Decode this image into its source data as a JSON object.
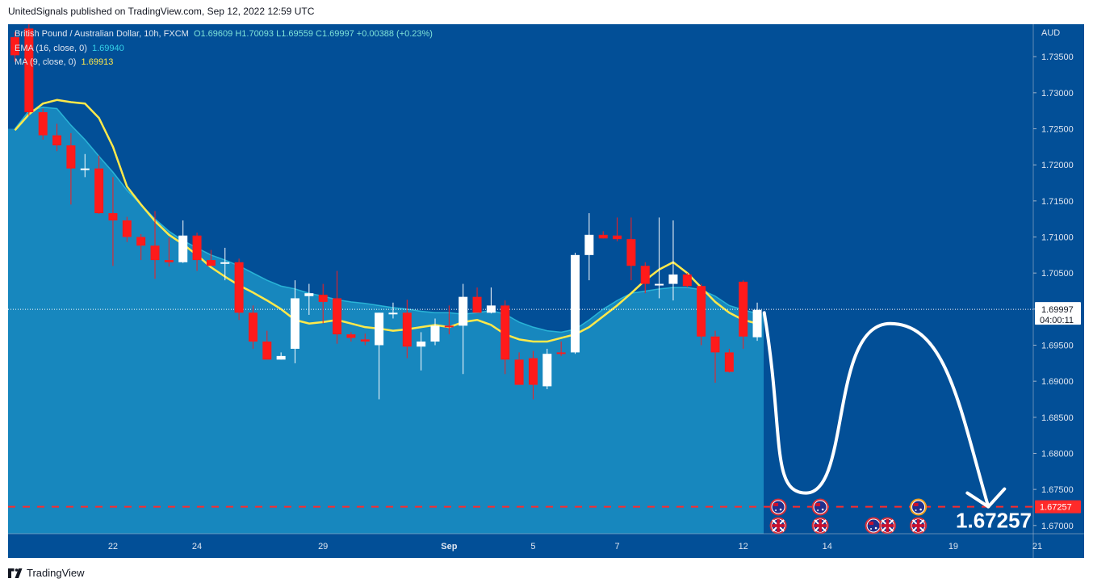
{
  "header": {
    "publisher_line": "UnitedSignals published on TradingView.com, Sep 12, 2022 12:59 UTC"
  },
  "legend": {
    "symbol": "British Pound / Australian Dollar, 10h, FXCM",
    "ohlc": "O1.69609  H1.70093  L1.69559  C1.69997  +0.00388 (+0.23%)",
    "ema_label": "EMA (16, close, 0)",
    "ema_value": "1.69940",
    "ma_label": "MA (9, close, 0)",
    "ma_value": "1.69913"
  },
  "price_scale": {
    "currency": "AUD",
    "last_price": "1.69997",
    "countdown": "04:00:11",
    "target_tag": "1.67257"
  },
  "target_annotation": "1.67257",
  "footer": {
    "brand": "TradingView"
  },
  "colors": {
    "background": "#024f97",
    "up_candle": "#ffffff",
    "down_candle": "#ff1a1a",
    "ema_fill": "#1a8fc4",
    "ma_line": "#ffe94a",
    "ema_line": "#35d2e8",
    "target_line": "#ff2a2a",
    "projection": "#ffffff"
  },
  "chart_data": {
    "type": "candlestick",
    "title": "British Pound / Australian Dollar, 10h, FXCM",
    "y_axis": {
      "ticks": [
        1.735,
        1.73,
        1.725,
        1.72,
        1.715,
        1.71,
        1.705,
        1.7,
        1.695,
        1.69,
        1.685,
        1.68,
        1.675,
        1.67
      ],
      "tick_labels": [
        "1.73500",
        "1.73000",
        "1.72500",
        "1.72000",
        "1.71500",
        "1.71000",
        "1.70500",
        "1.70000",
        "1.69500",
        "1.69000",
        "1.68500",
        "1.68000",
        "1.67500",
        "1.67000"
      ],
      "ylim": [
        1.6655,
        1.7395
      ]
    },
    "x_axis": {
      "tick_labels": [
        "22",
        "24",
        "29",
        "Sep",
        "5",
        "7",
        "12",
        "14",
        "19",
        "21"
      ],
      "tick_bar_index": [
        7,
        13,
        22,
        31,
        37,
        43,
        52,
        58,
        67,
        73
      ]
    },
    "candles": [
      {
        "o": 1.7377,
        "h": 1.7384,
        "l": 1.7343,
        "c": 1.7352
      },
      {
        "o": 1.7389,
        "h": 1.7395,
        "l": 1.7268,
        "c": 1.7273
      },
      {
        "o": 1.7273,
        "h": 1.7278,
        "l": 1.7235,
        "c": 1.7241
      },
      {
        "o": 1.7241,
        "h": 1.7257,
        "l": 1.7219,
        "c": 1.7227
      },
      {
        "o": 1.7227,
        "h": 1.7244,
        "l": 1.7145,
        "c": 1.7195
      },
      {
        "o": 1.7195,
        "h": 1.7215,
        "l": 1.7183,
        "c": 1.7195
      },
      {
        "o": 1.7195,
        "h": 1.7213,
        "l": 1.7132,
        "c": 1.7133
      },
      {
        "o": 1.7133,
        "h": 1.7183,
        "l": 1.706,
        "c": 1.7123
      },
      {
        "o": 1.7123,
        "h": 1.7128,
        "l": 1.7093,
        "c": 1.71
      },
      {
        "o": 1.71,
        "h": 1.7104,
        "l": 1.7068,
        "c": 1.7088
      },
      {
        "o": 1.7088,
        "h": 1.7136,
        "l": 1.7042,
        "c": 1.7068
      },
      {
        "o": 1.7068,
        "h": 1.7099,
        "l": 1.7059,
        "c": 1.7065
      },
      {
        "o": 1.7065,
        "h": 1.7123,
        "l": 1.7064,
        "c": 1.7102
      },
      {
        "o": 1.7102,
        "h": 1.7106,
        "l": 1.7053,
        "c": 1.7068
      },
      {
        "o": 1.7068,
        "h": 1.7082,
        "l": 1.706,
        "c": 1.706
      },
      {
        "o": 1.7065,
        "h": 1.7085,
        "l": 1.704,
        "c": 1.7065
      },
      {
        "o": 1.7065,
        "h": 1.707,
        "l": 1.6985,
        "c": 1.6995
      },
      {
        "o": 1.6995,
        "h": 1.7005,
        "l": 1.6945,
        "c": 1.6955
      },
      {
        "o": 1.6955,
        "h": 1.697,
        "l": 1.6935,
        "c": 1.693
      },
      {
        "o": 1.693,
        "h": 1.694,
        "l": 1.693,
        "c": 1.6935
      },
      {
        "o": 1.6945,
        "h": 1.704,
        "l": 1.6925,
        "c": 1.7015
      },
      {
        "o": 1.7018,
        "h": 1.7035,
        "l": 1.6992,
        "c": 1.7022
      },
      {
        "o": 1.702,
        "h": 1.7035,
        "l": 1.698,
        "c": 1.701
      },
      {
        "o": 1.7015,
        "h": 1.7053,
        "l": 1.6952,
        "c": 1.6965
      },
      {
        "o": 1.6965,
        "h": 1.6968,
        "l": 1.6955,
        "c": 1.696
      },
      {
        "o": 1.6958,
        "h": 1.6966,
        "l": 1.695,
        "c": 1.6955
      },
      {
        "o": 1.695,
        "h": 1.6995,
        "l": 1.6875,
        "c": 1.6995
      },
      {
        "o": 1.6995,
        "h": 1.7009,
        "l": 1.6987,
        "c": 1.6995
      },
      {
        "o": 1.6995,
        "h": 1.7013,
        "l": 1.6932,
        "c": 1.6948
      },
      {
        "o": 1.6948,
        "h": 1.6968,
        "l": 1.6915,
        "c": 1.6955
      },
      {
        "o": 1.6955,
        "h": 1.6987,
        "l": 1.695,
        "c": 1.6977
      },
      {
        "o": 1.6977,
        "h": 1.7005,
        "l": 1.6965,
        "c": 1.6975
      },
      {
        "o": 1.6977,
        "h": 1.7035,
        "l": 1.691,
        "c": 1.7017
      },
      {
        "o": 1.7017,
        "h": 1.703,
        "l": 1.6995,
        "c": 1.6995
      },
      {
        "o": 1.6995,
        "h": 1.703,
        "l": 1.6994,
        "c": 1.7005
      },
      {
        "o": 1.7005,
        "h": 1.7012,
        "l": 1.691,
        "c": 1.693
      },
      {
        "o": 1.693,
        "h": 1.694,
        "l": 1.6898,
        "c": 1.6895
      },
      {
        "o": 1.6932,
        "h": 1.6942,
        "l": 1.6875,
        "c": 1.6895
      },
      {
        "o": 1.6893,
        "h": 1.6945,
        "l": 1.6889,
        "c": 1.6938
      },
      {
        "o": 1.694,
        "h": 1.6955,
        "l": 1.6935,
        "c": 1.6938
      },
      {
        "o": 1.694,
        "h": 1.7078,
        "l": 1.6938,
        "c": 1.7075
      },
      {
        "o": 1.7075,
        "h": 1.7133,
        "l": 1.704,
        "c": 1.7103
      },
      {
        "o": 1.7103,
        "h": 1.7108,
        "l": 1.7098,
        "c": 1.7098
      },
      {
        "o": 1.7102,
        "h": 1.7127,
        "l": 1.7094,
        "c": 1.7097
      },
      {
        "o": 1.7097,
        "h": 1.7127,
        "l": 1.704,
        "c": 1.706
      },
      {
        "o": 1.706,
        "h": 1.7065,
        "l": 1.7022,
        "c": 1.7035
      },
      {
        "o": 1.7035,
        "h": 1.7127,
        "l": 1.7015,
        "c": 1.7035
      },
      {
        "o": 1.7035,
        "h": 1.7123,
        "l": 1.7012,
        "c": 1.7048
      },
      {
        "o": 1.7048,
        "h": 1.705,
        "l": 1.703,
        "c": 1.7032
      },
      {
        "o": 1.7032,
        "h": 1.7035,
        "l": 1.695,
        "c": 1.6962
      },
      {
        "o": 1.6962,
        "h": 1.697,
        "l": 1.6898,
        "c": 1.694
      },
      {
        "o": 1.694,
        "h": 1.6945,
        "l": 1.6912,
        "c": 1.6913
      },
      {
        "o": 1.7038,
        "h": 1.704,
        "l": 1.6945,
        "c": 1.6962
      },
      {
        "o": 1.6961,
        "h": 1.7009,
        "l": 1.6956,
        "c": 1.6999
      }
    ],
    "ema_16": [
      1.725,
      1.7275,
      1.728,
      1.7278,
      1.7255,
      1.7235,
      1.7212,
      1.719,
      1.7165,
      1.7145,
      1.7125,
      1.7108,
      1.7095,
      1.7085,
      1.7075,
      1.7068,
      1.706,
      1.705,
      1.704,
      1.7032,
      1.7028,
      1.7022,
      1.7018,
      1.7013,
      1.701,
      1.7008,
      1.7005,
      1.7002,
      1.7,
      1.6997,
      1.6995,
      1.6995,
      1.6993,
      1.6995,
      1.6998,
      1.6993,
      1.6982,
      1.6975,
      1.697,
      1.6968,
      1.6972,
      1.6985,
      1.7,
      1.7012,
      1.7022,
      1.7025,
      1.7028,
      1.703,
      1.703,
      1.7027,
      1.7018,
      1.7005,
      1.6999,
      1.6994
    ],
    "ma_9": [
      1.7248,
      1.727,
      1.7285,
      1.729,
      1.7287,
      1.7285,
      1.7265,
      1.7225,
      1.717,
      1.7145,
      1.7122,
      1.7103,
      1.709,
      1.7075,
      1.7058,
      1.7045,
      1.7033,
      1.7023,
      1.7012,
      1.7,
      1.6985,
      1.698,
      1.6982,
      1.6985,
      1.698,
      1.6975,
      1.6973,
      1.697,
      1.6972,
      1.6975,
      1.6978,
      1.6975,
      1.6982,
      1.6985,
      1.6978,
      1.6965,
      1.6958,
      1.6955,
      1.6955,
      1.696,
      1.6965,
      1.6975,
      1.699,
      1.7005,
      1.7022,
      1.704,
      1.7055,
      1.7065,
      1.705,
      1.703,
      1.701,
      1.6995,
      1.6985,
      1.698
    ],
    "projection_path": [
      {
        "bar": 53.5,
        "price": 1.6995
      },
      {
        "bar": 56.5,
        "price": 1.6745
      },
      {
        "bar": 62.5,
        "price": 1.698
      },
      {
        "bar": 69.5,
        "price": 1.6726
      }
    ],
    "horizontal_lines": [
      {
        "price": 1.6726,
        "style": "dashed",
        "label": "1.67257"
      }
    ],
    "last_price_line": 1.69997,
    "events": [
      {
        "bar": 54.5,
        "row": 1,
        "flag": "AU",
        "highlight": false
      },
      {
        "bar": 57.5,
        "row": 1,
        "flag": "AU",
        "highlight": false
      },
      {
        "bar": 64.5,
        "row": 1,
        "flag": "AU",
        "highlight": true
      },
      {
        "bar": 54.5,
        "row": 2,
        "flag": "GB",
        "highlight": false
      },
      {
        "bar": 57.5,
        "row": 2,
        "flag": "GB",
        "highlight": false
      },
      {
        "bar": 61.3,
        "row": 2,
        "flag": "AU",
        "highlight": false
      },
      {
        "bar": 62.3,
        "row": 2,
        "flag": "GB",
        "highlight": false
      },
      {
        "bar": 64.5,
        "row": 2,
        "flag": "GB",
        "highlight": false
      }
    ]
  }
}
